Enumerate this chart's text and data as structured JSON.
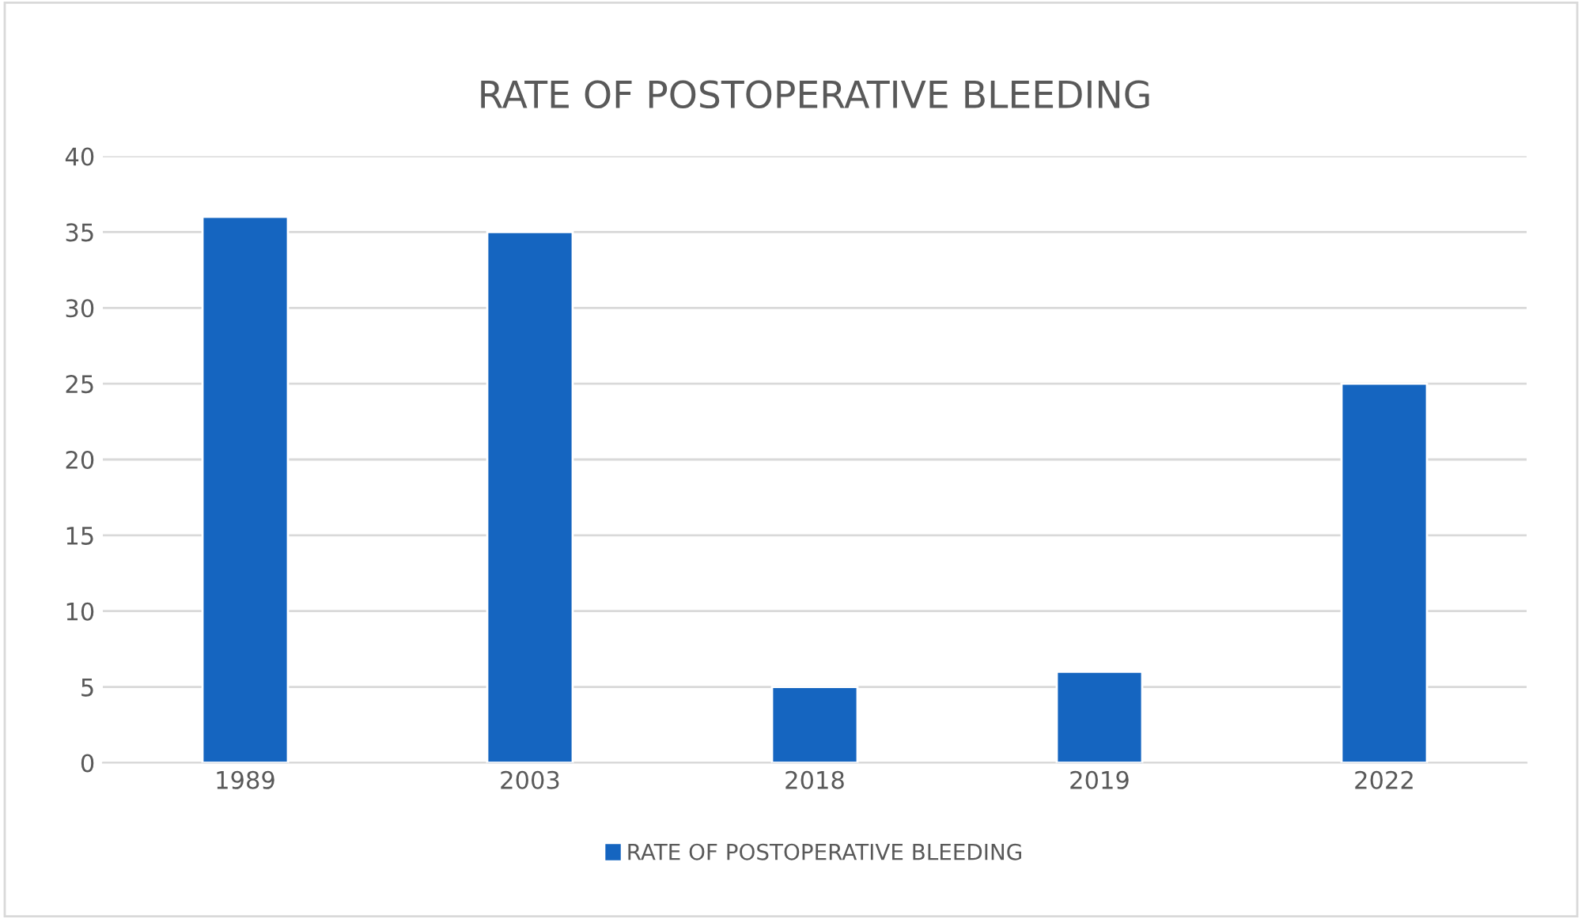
{
  "chart_data": {
    "type": "bar",
    "title": "RATE OF POSTOPERATIVE BLEEDING",
    "categories": [
      "1989",
      "2003",
      "2018",
      "2019",
      "2022"
    ],
    "series": [
      {
        "name": "RATE OF POSTOPERATIVE BLEEDING",
        "color": "#1565c0",
        "values": [
          36,
          35,
          5,
          6,
          25
        ]
      }
    ],
    "ylim": [
      0,
      40
    ],
    "yticks": [
      0,
      5,
      10,
      15,
      20,
      25,
      30,
      35,
      40
    ],
    "grid": "y",
    "legend": "bottom"
  }
}
